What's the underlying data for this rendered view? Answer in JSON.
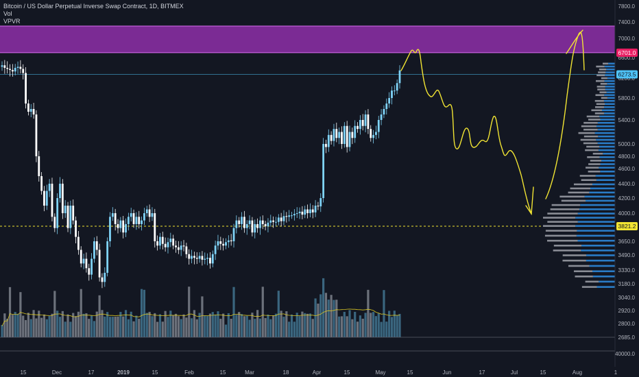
{
  "legend": {
    "symbol_line": "Bitcoin / US Dollar Perpetual Inverse Swap Contract, 1D, BITMEX",
    "vol": "Vol",
    "vpvr": "VPVR"
  },
  "colors": {
    "background": "#131722",
    "up": "#7fd3f7",
    "down": "#ffffff",
    "zone": "#8e2fa8",
    "zone_border": "#d96cf0",
    "drawing": "#f2e533",
    "vol_ma": "#d8c524",
    "vpvr_up": "#2a7cc7",
    "vpvr_down": "#8a8d96",
    "tag_magenta": "#e91e63",
    "tag_cyan": "#4fc3f7",
    "tag_yellow": "#f2e533"
  },
  "chart_data": {
    "type": "candlestick",
    "y_axis_ticks": [
      "7800.0",
      "7400.0",
      "7000.0",
      "6600.0",
      "6200.0",
      "5800.0",
      "5400.0",
      "5000.0",
      "4800.0",
      "4600.0",
      "4400.0",
      "4200.0",
      "4000.0",
      "3821.2",
      "3650.0",
      "3490.0",
      "3330.0",
      "3180.0",
      "3040.0",
      "2920.0",
      "2800.0",
      "2685.0"
    ],
    "x_axis_ticks": [
      "15",
      "Dec",
      "17",
      "2019",
      "15",
      "Feb",
      "15",
      "Mar",
      "18",
      "Apr",
      "15",
      "May",
      "15",
      "Jun",
      "17",
      "Jul",
      "15",
      "Aug",
      "1"
    ],
    "price_tags": [
      {
        "label": "6701.0",
        "value": 6701.0,
        "color": "magenta"
      },
      {
        "label": "6273.5",
        "value": 6273.5,
        "color": "cyan"
      },
      {
        "label": "3821.2",
        "value": 3821.2,
        "color": "yellow"
      }
    ],
    "resistance_zone": {
      "from": 6701.0,
      "to": 7300.0
    },
    "volume_pane_tick": "40000.0",
    "closes": [
      6450,
      6400,
      6380,
      6360,
      6330,
      6400,
      6420,
      6380,
      6300,
      5700,
      5550,
      5600,
      5500,
      4800,
      4500,
      4300,
      4100,
      4300,
      4400,
      3950,
      3800,
      4200,
      4400,
      4000,
      4100,
      3800,
      4100,
      3900,
      3700,
      3550,
      3400,
      3450,
      3350,
      3280,
      3450,
      3650,
      3550,
      3250,
      3200,
      3300,
      3650,
      3950,
      4000,
      3850,
      3800,
      3900,
      3750,
      3850,
      3950,
      4000,
      3850,
      3950,
      3850,
      3900,
      4000,
      4050,
      3950,
      4000,
      3650,
      3600,
      3700,
      3620,
      3580,
      3640,
      3680,
      3600,
      3580,
      3550,
      3600,
      3590,
      3500,
      3450,
      3480,
      3460,
      3450,
      3480,
      3440,
      3450,
      3460,
      3400,
      3500,
      3600,
      3650,
      3620,
      3600,
      3640,
      3660,
      3650,
      3800,
      3900,
      3850,
      3950,
      3800,
      3850,
      3900,
      3750,
      3850,
      3800,
      3900,
      3850,
      3820,
      3870,
      3900,
      3880,
      3880,
      3940,
      3890,
      3960,
      3950,
      3970,
      3970,
      3990,
      4000,
      4020,
      3980,
      4050,
      4000,
      4050,
      4010,
      4100,
      4090,
      4200,
      5000,
      4950,
      5150,
      5050,
      5250,
      5100,
      5200,
      5000,
      5300,
      4950,
      5200,
      5100,
      5300,
      5250,
      5400,
      5300,
      5500,
      5250,
      5100,
      5150,
      5200,
      5400,
      5500,
      5600,
      5700,
      5800,
      5950,
      5950,
      6100,
      6350
    ],
    "drawings": [
      {
        "type": "projection-path",
        "description_tag": "decline"
      },
      {
        "type": "projection-path",
        "description_tag": "rally"
      }
    ]
  }
}
